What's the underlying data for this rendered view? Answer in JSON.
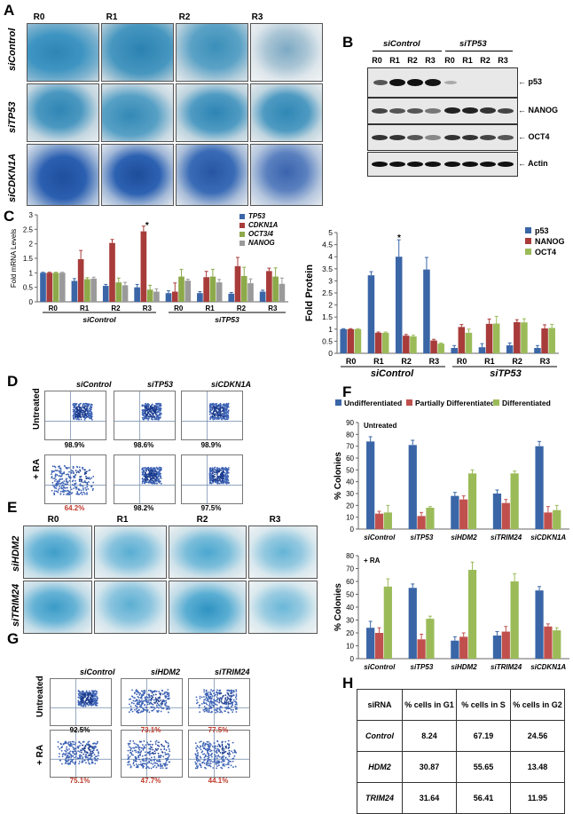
{
  "panels": {
    "A": "A",
    "B": "B",
    "C": "C",
    "D": "D",
    "E": "E",
    "F": "F",
    "G": "G",
    "H": "H"
  },
  "panelA": {
    "cols": [
      "R0",
      "R1",
      "R2",
      "R3"
    ],
    "rows": [
      "siControl",
      "siTP53",
      "siCDKN1A"
    ]
  },
  "panelB": {
    "groups": [
      "siControl",
      "siTP53"
    ],
    "lanes": [
      "R0",
      "R1",
      "R2",
      "R3",
      "R0",
      "R1",
      "R2",
      "R3"
    ],
    "blots": [
      "p53",
      "NANOG",
      "OCT4",
      "Actin"
    ]
  },
  "panelE": {
    "cols": [
      "R0",
      "R1",
      "R2",
      "R3"
    ],
    "rows": [
      "siHDM2",
      "siTRIM24"
    ]
  },
  "panelD": {
    "cols": [
      "siControl",
      "siTP53",
      "siCDKN1A"
    ],
    "rows": [
      "Untreated",
      "+ RA"
    ],
    "pct": [
      [
        "98.9%",
        "98.6%",
        "98.9%"
      ],
      [
        "64.2%",
        "98.2%",
        "97.5%"
      ]
    ]
  },
  "panelG": {
    "cols": [
      "siControl",
      "siHDM2",
      "siTRIM24"
    ],
    "rows": [
      "Untreated",
      "+ RA"
    ],
    "pct": [
      [
        "92.5%",
        "73.1%",
        "77.5%"
      ],
      [
        "75.1%",
        "47.7%",
        "44.1%"
      ]
    ]
  },
  "panelH": {
    "headers": [
      "siRNA",
      "% cells in G1",
      "% cells in S",
      "% cells in G2"
    ],
    "rows": [
      [
        "Control",
        "8.24",
        "67.19",
        "24.56"
      ],
      [
        "HDM2",
        "30.87",
        "55.65",
        "13.48"
      ],
      [
        "TRIM24",
        "31.64",
        "56.41",
        "11.95"
      ]
    ]
  },
  "colors": {
    "blue": "#3A66A7",
    "red": "#A83C3A",
    "green": "#8DAA4A",
    "gray": "#9A9A9A",
    "lightgreen": "#9BBB59",
    "darkred": "#C0504D",
    "negred": "#C0392B"
  },
  "chart_data": [
    {
      "id": "C-left",
      "type": "bar",
      "ylabel": "Fold mRNA Levels",
      "ylim": [
        0,
        3
      ],
      "yticks": [
        "0",
        "0.5",
        "1",
        "1.5",
        "2",
        "2.5",
        "3"
      ],
      "categories": [
        "R0",
        "R1",
        "R2",
        "R3",
        "R0",
        "R1",
        "R2",
        "R3"
      ],
      "groups": [
        "siControl",
        "siTP53"
      ],
      "legend_pos": "top-right",
      "annotation": "*",
      "series": [
        {
          "name": "TP53",
          "color": "#3A66A7",
          "values": [
            1,
            0.72,
            0.55,
            0.5,
            0.3,
            0.3,
            0.28,
            0.35
          ]
        },
        {
          "name": "CDKN1A",
          "color": "#A83C3A",
          "values": [
            1,
            1.47,
            2.03,
            2.43,
            0.35,
            0.85,
            1.23,
            1.06
          ]
        },
        {
          "name": "OCT3/4",
          "color": "#8DAA4A",
          "values": [
            1,
            0.78,
            0.67,
            0.42,
            0.87,
            0.87,
            0.89,
            0.87
          ]
        },
        {
          "name": "NANOG",
          "color": "#9A9A9A",
          "values": [
            1,
            0.8,
            0.57,
            0.35,
            0.73,
            0.67,
            0.64,
            0.62
          ]
        }
      ],
      "errors": [
        [
          0.02,
          0.08,
          0.05,
          0.1,
          0.08,
          0.05,
          0.04,
          0.05
        ],
        [
          0.02,
          0.3,
          0.12,
          0.18,
          0.3,
          0.2,
          0.3,
          0.1
        ],
        [
          0.02,
          0.05,
          0.15,
          0.15,
          0.25,
          0.25,
          0.3,
          0.3
        ],
        [
          0.02,
          0.05,
          0.1,
          0.1,
          0.05,
          0.1,
          0.15,
          0.2
        ]
      ]
    },
    {
      "id": "C-right",
      "type": "bar",
      "ylabel": "Fold Protein",
      "ylim": [
        0,
        5
      ],
      "yticks": [
        "0",
        "0.5",
        "1",
        "1.5",
        "2",
        "2.5",
        "3",
        "3.5",
        "4",
        "4.5",
        "5"
      ],
      "categories": [
        "R0",
        "R1",
        "R2",
        "R3",
        "R0",
        "R1",
        "R2",
        "R3"
      ],
      "groups": [
        "siControl",
        "siTP53"
      ],
      "legend_pos": "top-right",
      "annotation": "*",
      "series": [
        {
          "name": "p53",
          "color": "#3A66A7",
          "values": [
            1,
            3.23,
            4,
            3.47,
            0.22,
            0.25,
            0.33,
            0.22
          ]
        },
        {
          "name": "NANOG",
          "color": "#A83C3A",
          "values": [
            1,
            0.85,
            0.73,
            0.53,
            1.09,
            1.22,
            1.29,
            1.03
          ]
        },
        {
          "name": "OCT4",
          "color": "#9BBB59",
          "values": [
            1,
            0.85,
            0.7,
            0.4,
            0.85,
            1.23,
            1.28,
            1.05
          ]
        }
      ],
      "errors": [
        [
          0.02,
          0.15,
          0.7,
          0.5,
          0.1,
          0.15,
          0.1,
          0.1
        ],
        [
          0.02,
          0.03,
          0.05,
          0.05,
          0.1,
          0.2,
          0.1,
          0.15
        ],
        [
          0.02,
          0.03,
          0.05,
          0.03,
          0.15,
          0.3,
          0.15,
          0.15
        ]
      ]
    },
    {
      "id": "F-top",
      "type": "bar",
      "ylabel": "% Colonies",
      "ylim": [
        0,
        90
      ],
      "yticks": [
        "0",
        "10",
        "20",
        "30",
        "40",
        "50",
        "60",
        "70",
        "80",
        "90"
      ],
      "annotation": "Untreated",
      "categories": [
        "siControl",
        "siTP53",
        "siHDM2",
        "siTRIM24",
        "siCDKN1A"
      ],
      "legend_pos": "top",
      "series": [
        {
          "name": "Undifferentiated",
          "color": "#3A66A7",
          "values": [
            74,
            71,
            28,
            30,
            70
          ]
        },
        {
          "name": "Partially Differentiated",
          "color": "#C0504D",
          "values": [
            13,
            11,
            25,
            22,
            14
          ]
        },
        {
          "name": "Differentiated",
          "color": "#9BBB59",
          "values": [
            14,
            18,
            47,
            47,
            16
          ]
        }
      ],
      "errors": [
        [
          4,
          4,
          3,
          3,
          4
        ],
        [
          2,
          3,
          3,
          3,
          5
        ],
        [
          6,
          1,
          3,
          2,
          4
        ]
      ]
    },
    {
      "id": "F-bottom",
      "type": "bar",
      "ylabel": "% Colonies",
      "ylim": [
        0,
        80
      ],
      "yticks": [
        "0",
        "10",
        "20",
        "30",
        "40",
        "50",
        "60",
        "70",
        "80"
      ],
      "annotation": "+ RA",
      "categories": [
        "siControl",
        "siTP53",
        "siHDM2",
        "siTRIM24",
        "siCDKN1A"
      ],
      "series": [
        {
          "name": "Undifferentiated",
          "color": "#3A66A7",
          "values": [
            24,
            55,
            14,
            18,
            53
          ]
        },
        {
          "name": "Partially Differentiated",
          "color": "#C0504D",
          "values": [
            20,
            15,
            17,
            21,
            25
          ]
        },
        {
          "name": "Differentiated",
          "color": "#9BBB59",
          "values": [
            56,
            31,
            69,
            60,
            22
          ]
        }
      ],
      "errors": [
        [
          5,
          3,
          3,
          3,
          3
        ],
        [
          4,
          4,
          3,
          4,
          2
        ],
        [
          6,
          2,
          6,
          6,
          2
        ]
      ]
    }
  ]
}
